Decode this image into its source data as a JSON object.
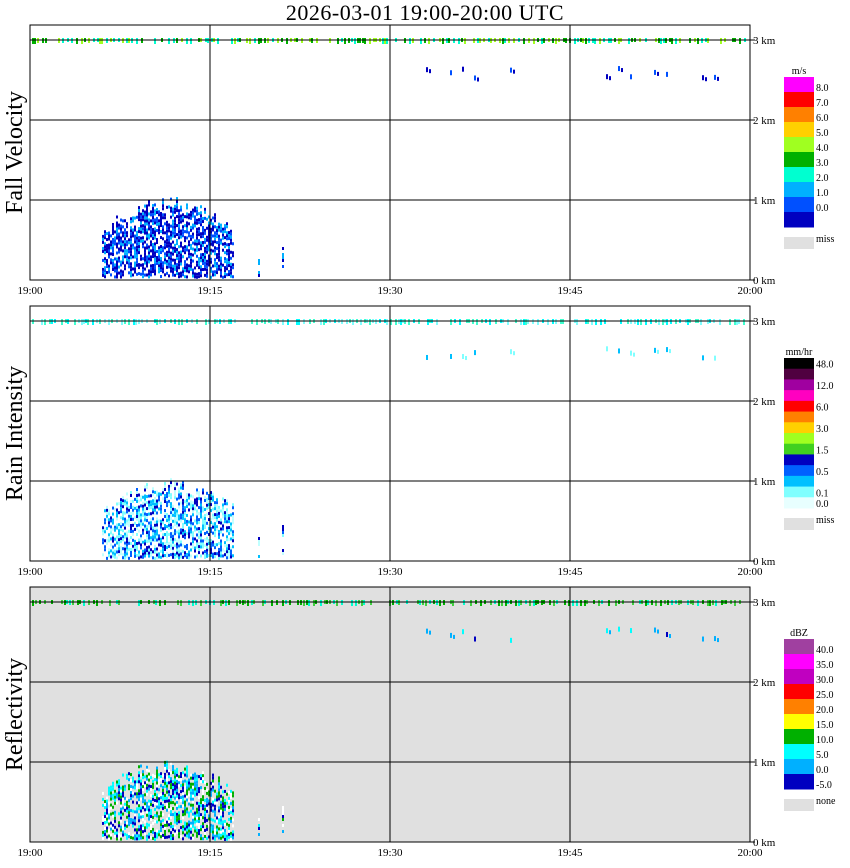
{
  "title": "2026-03-01   19:00-20:00 UTC",
  "x_ticks": [
    "19:00",
    "19:15",
    "19:30",
    "19:45",
    "20:00"
  ],
  "y_ticks": [
    "0 km",
    "1 km",
    "2 km",
    "3 km"
  ],
  "panels": [
    {
      "name": "Fall Velocity",
      "unit": "m/s",
      "colorbar": [
        {
          "label": "8.0",
          "color": "#ff00ff"
        },
        {
          "label": "7.0",
          "color": "#ff0000"
        },
        {
          "label": "6.0",
          "color": "#ff8000"
        },
        {
          "label": "5.0",
          "color": "#ffd000"
        },
        {
          "label": "4.0",
          "color": "#a0ff20"
        },
        {
          "label": "3.0",
          "color": "#00b000"
        },
        {
          "label": "2.0",
          "color": "#00ffd0"
        },
        {
          "label": "1.0",
          "color": "#00b0ff"
        },
        {
          "label": "0.0",
          "color": "#0050ff"
        },
        {
          "label": "",
          "color": "#0000c0"
        }
      ],
      "miss_label": "miss",
      "background": "#ffffff"
    },
    {
      "name": "Rain Intensity",
      "unit": "mm/hr",
      "colorbar": [
        {
          "label": "48.0",
          "color": "#000000"
        },
        {
          "label": "",
          "color": "#500040"
        },
        {
          "label": "12.0",
          "color": "#a000a0"
        },
        {
          "label": "",
          "color": "#ff00c0"
        },
        {
          "label": "6.0",
          "color": "#ff0000"
        },
        {
          "label": "",
          "color": "#ff8000"
        },
        {
          "label": "3.0",
          "color": "#ffd000"
        },
        {
          "label": "",
          "color": "#a0ff20"
        },
        {
          "label": "1.5",
          "color": "#40d020"
        },
        {
          "label": "",
          "color": "#0000c0"
        },
        {
          "label": "0.5",
          "color": "#0060ff"
        },
        {
          "label": "",
          "color": "#00c0ff"
        },
        {
          "label": "0.1",
          "color": "#80ffff"
        },
        {
          "label": "0.0",
          "color": "#e8ffff"
        }
      ],
      "miss_label": "miss",
      "background": "#ffffff"
    },
    {
      "name": "Reflectivity",
      "unit": "dBZ",
      "colorbar": [
        {
          "label": "40.0",
          "color": "#a040a0"
        },
        {
          "label": "35.0",
          "color": "#ff00ff"
        },
        {
          "label": "30.0",
          "color": "#c000c0"
        },
        {
          "label": "25.0",
          "color": "#ff0000"
        },
        {
          "label": "20.0",
          "color": "#ff8000"
        },
        {
          "label": "15.0",
          "color": "#ffff00"
        },
        {
          "label": "10.0",
          "color": "#00b000"
        },
        {
          "label": "5.0",
          "color": "#00ffff"
        },
        {
          "label": "0.0",
          "color": "#00b0ff"
        },
        {
          "label": "-5.0",
          "color": "#0000c0"
        }
      ],
      "miss_label": "none",
      "background": "#e0e0e0"
    }
  ],
  "chart_data": {
    "type": "heatmap",
    "x": {
      "range": [
        "19:00",
        "20:00"
      ],
      "unit": "UTC"
    },
    "y": {
      "range": [
        0,
        3
      ],
      "unit": "km"
    },
    "grid": true,
    "features": [
      {
        "name": "bright band",
        "height_km": 3.0,
        "time": [
          "19:00",
          "20:00"
        ],
        "velocity_ms": [
          3.0,
          5.0
        ],
        "rain_mmhr": [
          0.1,
          0.5
        ],
        "dbz": [
          5.0,
          15.0
        ]
      },
      {
        "name": "rain below 1 km",
        "height_km": [
          0,
          1.0
        ],
        "time": [
          "19:06",
          "19:17"
        ],
        "velocity_ms": [
          0.0,
          2.0
        ],
        "rain_mmhr": [
          0.1,
          1.5
        ],
        "dbz": [
          -5.0,
          15.0
        ]
      },
      {
        "name": "echoes near 2.6 km",
        "height_km": [
          2.4,
          2.7
        ],
        "time": [
          "19:33",
          "19:57"
        ],
        "velocity_ms": [
          0.0,
          1.0
        ],
        "rain_mmhr": [
          0.1,
          0.5
        ],
        "dbz": [
          0.0,
          10.0
        ]
      }
    ]
  }
}
